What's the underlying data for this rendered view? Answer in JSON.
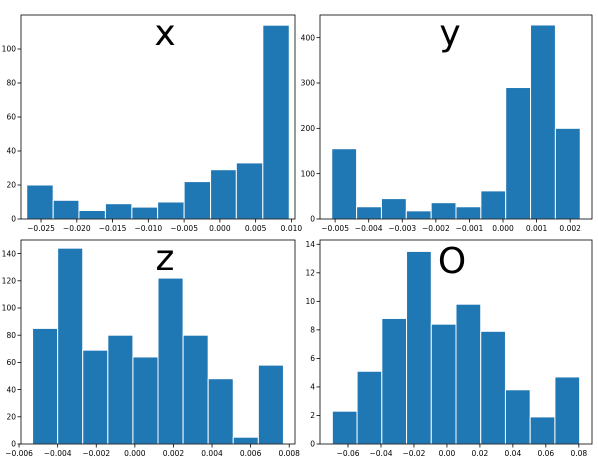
{
  "colors": {
    "bar": "#1f77b4",
    "bar_edge": "#ffffff",
    "axis": "#000000",
    "background": "#ffffff"
  },
  "chart_data": [
    {
      "type": "bar",
      "title": "x",
      "bin_edges": [
        -0.027,
        -0.0233,
        -0.0197,
        -0.016,
        -0.0123,
        -0.0087,
        -0.005,
        -0.0013,
        0.0023,
        0.006,
        0.0097
      ],
      "values": [
        20,
        11,
        5,
        9,
        7,
        10,
        22,
        29,
        33,
        114
      ],
      "xlim": [
        -0.0278,
        0.0105
      ],
      "ylim": [
        0,
        120
      ],
      "xticks": [
        -0.025,
        -0.02,
        -0.015,
        -0.01,
        -0.005,
        0.0,
        0.005,
        0.01
      ],
      "xtick_labels": [
        "−0.025",
        "−0.020",
        "−0.015",
        "−0.010",
        "−0.005",
        "0.000",
        "0.005",
        "0.010"
      ],
      "yticks": [
        0,
        20,
        40,
        60,
        80,
        100
      ],
      "ytick_labels": [
        "0",
        "20",
        "40",
        "60",
        "80",
        "100"
      ],
      "grid": false
    },
    {
      "type": "bar",
      "title": "y",
      "bin_edges": [
        -0.0051,
        -0.00436,
        -0.00362,
        -0.00288,
        -0.00214,
        -0.0014,
        -0.00066,
        8e-05,
        0.00082,
        0.00156,
        0.0023
      ],
      "values": [
        155,
        27,
        45,
        18,
        36,
        27,
        62,
        290,
        428,
        200
      ],
      "xlim": [
        -0.00545,
        0.00265
      ],
      "ylim": [
        0,
        450
      ],
      "xticks": [
        -0.005,
        -0.004,
        -0.003,
        -0.002,
        -0.001,
        0.0,
        0.001,
        0.002
      ],
      "xtick_labels": [
        "−0.005",
        "−0.004",
        "−0.003",
        "−0.002",
        "−0.001",
        "0.000",
        "0.001",
        "0.002"
      ],
      "yticks": [
        0,
        100,
        200,
        300,
        400
      ],
      "ytick_labels": [
        "0",
        "100",
        "200",
        "300",
        "400"
      ],
      "grid": false
    },
    {
      "type": "bar",
      "title": "z",
      "bin_edges": [
        -0.0053,
        -0.004,
        -0.0027,
        -0.0014,
        -0.0001,
        0.0012,
        0.0025,
        0.0038,
        0.0051,
        0.0064,
        0.0077
      ],
      "values": [
        85,
        144,
        69,
        80,
        64,
        122,
        80,
        48,
        5,
        58
      ],
      "xlim": [
        -0.0059,
        0.0083
      ],
      "ylim": [
        0,
        150
      ],
      "xticks": [
        -0.006,
        -0.004,
        -0.002,
        0.0,
        0.002,
        0.004,
        0.006,
        0.008
      ],
      "xtick_labels": [
        "−0.006",
        "−0.004",
        "−0.002",
        "0.000",
        "0.002",
        "0.004",
        "0.006",
        "0.008"
      ],
      "yticks": [
        0,
        20,
        40,
        60,
        80,
        100,
        120,
        140
      ],
      "ytick_labels": [
        "0",
        "20",
        "40",
        "60",
        "80",
        "100",
        "120",
        "140"
      ],
      "grid": false
    },
    {
      "type": "bar",
      "title": "O",
      "bin_edges": [
        -0.0695,
        -0.0545,
        -0.0395,
        -0.0245,
        -0.0095,
        0.0055,
        0.0205,
        0.0355,
        0.0505,
        0.0655,
        0.0805
      ],
      "values": [
        2.3,
        5.1,
        8.8,
        13.5,
        8.4,
        9.8,
        7.9,
        3.8,
        1.9,
        4.7
      ],
      "xlim": [
        -0.077,
        0.088
      ],
      "ylim": [
        0,
        14.3
      ],
      "xticks": [
        -0.06,
        -0.04,
        -0.02,
        0.0,
        0.02,
        0.04,
        0.06,
        0.08
      ],
      "xtick_labels": [
        "−0.06",
        "−0.04",
        "−0.02",
        "0.00",
        "0.02",
        "0.04",
        "0.06",
        "0.08"
      ],
      "yticks": [
        0,
        2,
        4,
        6,
        8,
        10,
        12,
        14
      ],
      "ytick_labels": [
        "0",
        "2",
        "4",
        "6",
        "8",
        "10",
        "12",
        "14"
      ],
      "grid": false
    }
  ]
}
